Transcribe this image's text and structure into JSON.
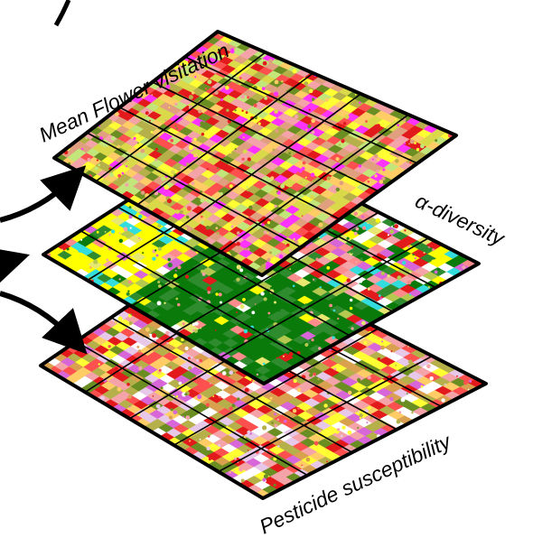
{
  "layers": [
    {
      "id": "top",
      "label": "Mean Flower visitation",
      "palette": [
        "#f4a3a8",
        "#ffff33",
        "#e31a1c",
        "#b5b04a",
        "#d9d94a",
        "#ff5050",
        "#c2e67a",
        "#e0a080",
        "#ff33ff",
        "#6b8e23",
        "#ffcc66"
      ]
    },
    {
      "id": "middle",
      "label": "α-diversity",
      "palette": [
        "#ffff00",
        "#0a7a0a",
        "#2e8b2e",
        "#e8e870",
        "#ff8c8c",
        "#d866d8",
        "#33dddd",
        "#f4a3a8",
        "#b5c850",
        "#ffffff",
        "#e31a1c"
      ]
    },
    {
      "id": "bottom",
      "label": "Pesticide susceptibility",
      "palette": [
        "#e31a1c",
        "#b5b04a",
        "#ffff33",
        "#d9a050",
        "#f4a3a8",
        "#d866d8",
        "#e8c8e8",
        "#6b8e23",
        "#ffcc66",
        "#ffffff",
        "#ff5050"
      ]
    }
  ],
  "arrows": [
    "curved-arrow-upper",
    "arrow-middle",
    "curved-arrow-lower"
  ]
}
